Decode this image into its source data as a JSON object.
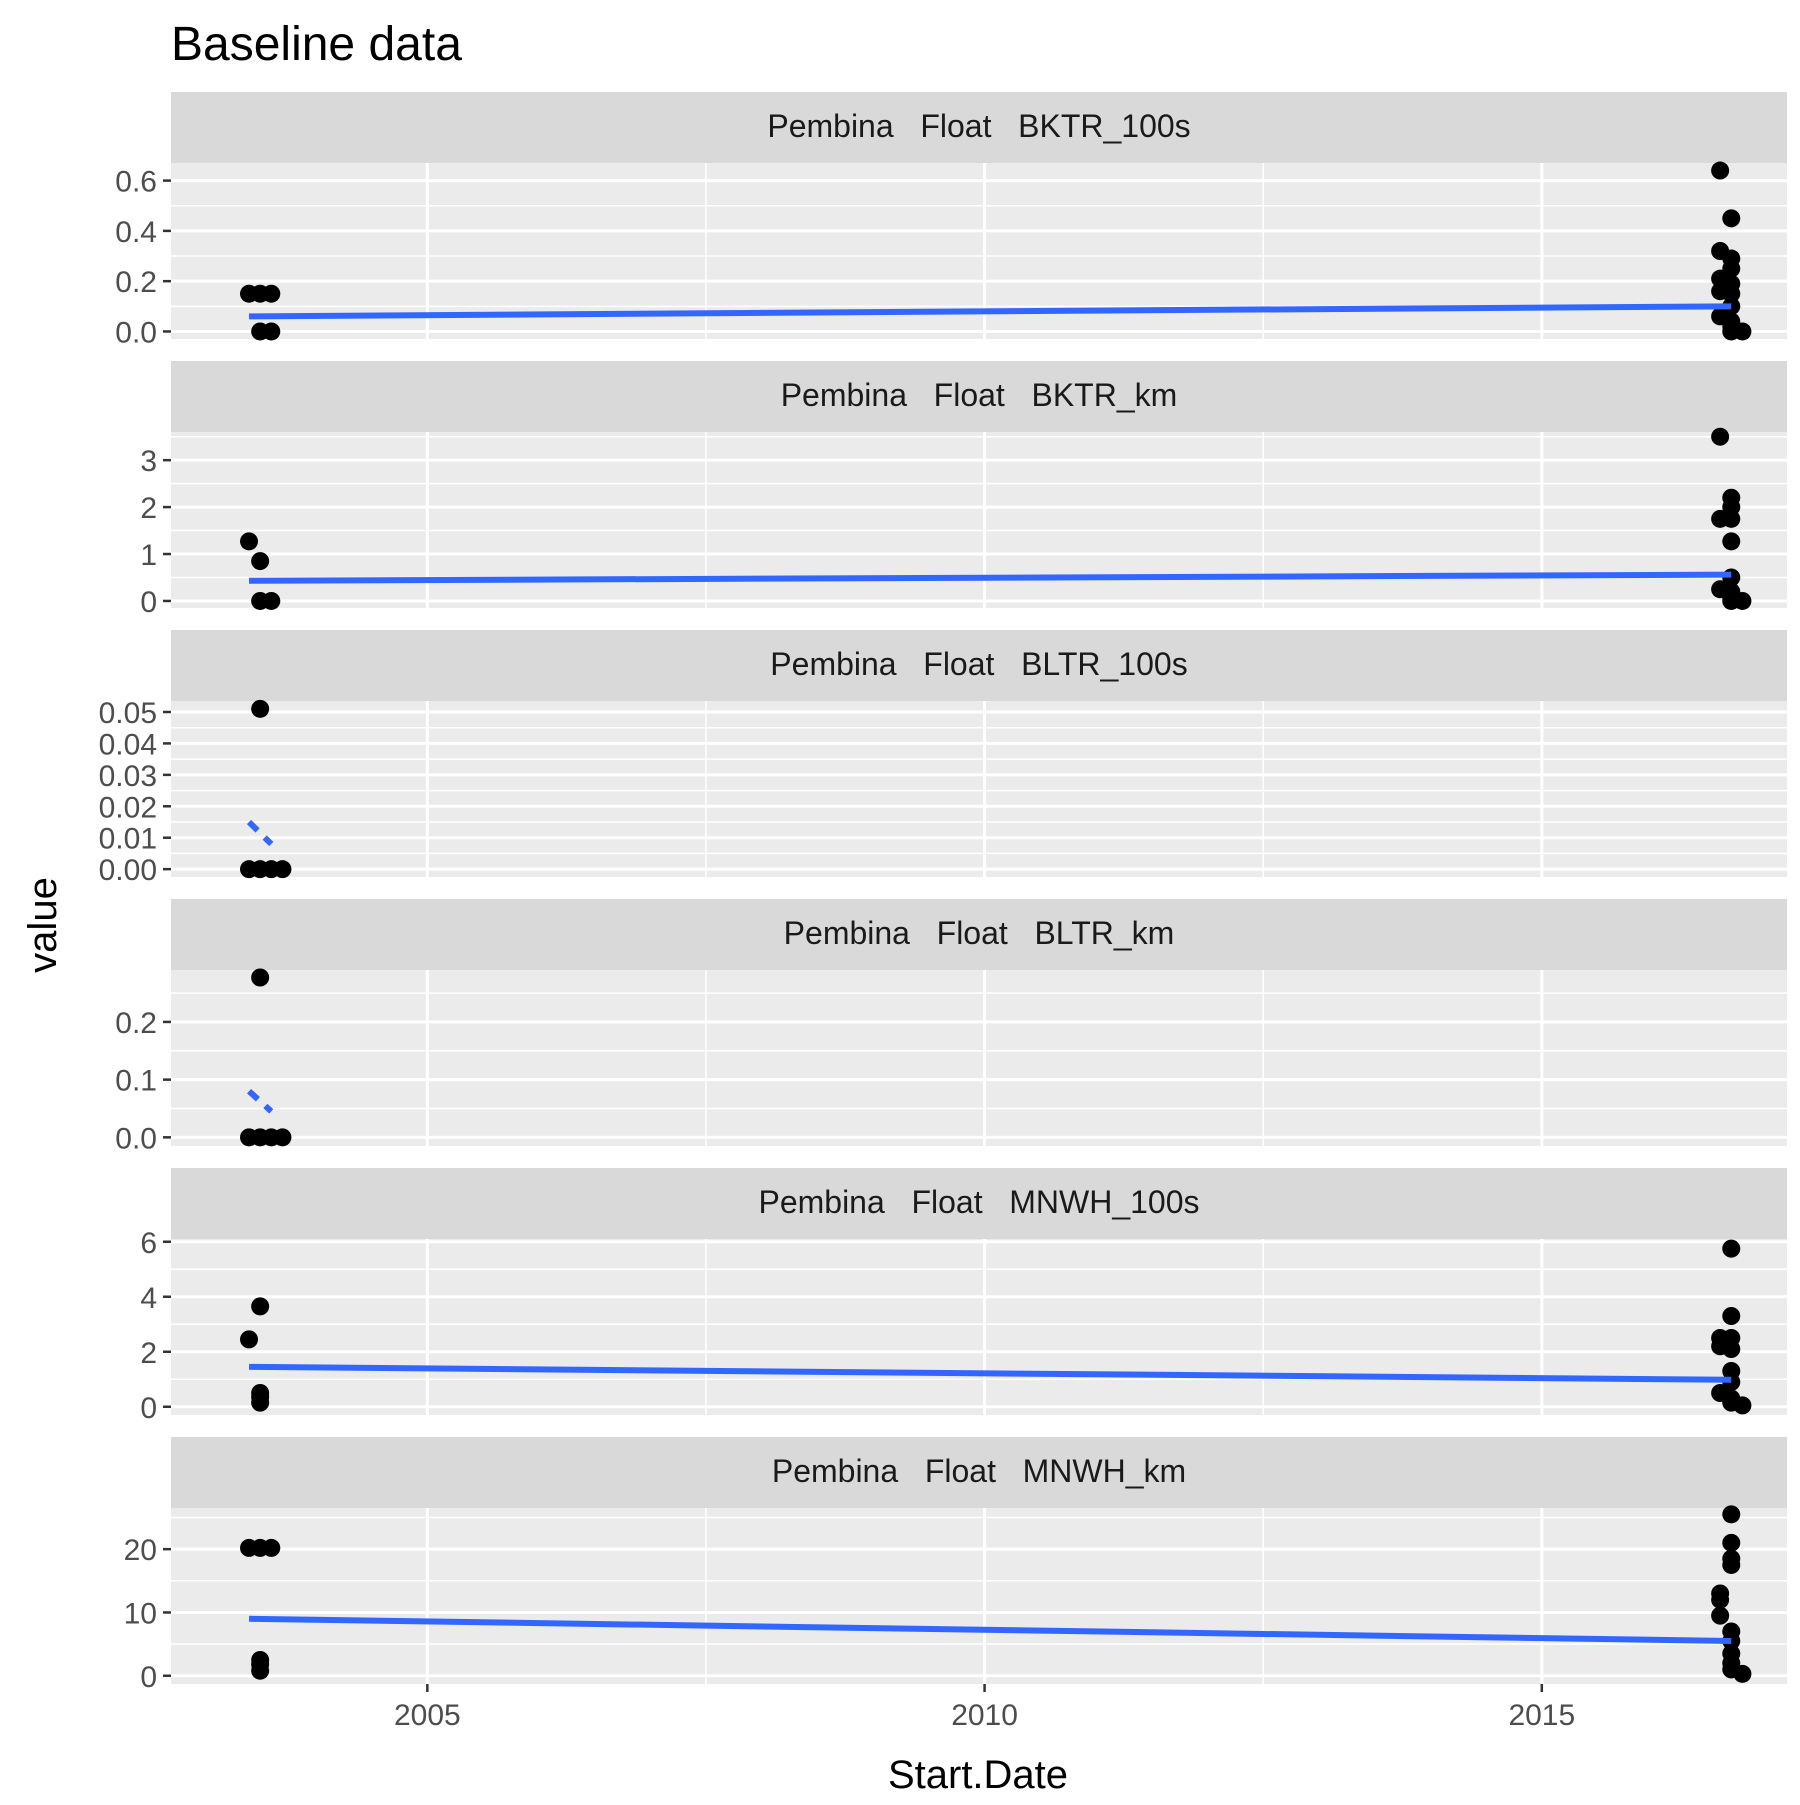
{
  "chart_data": {
    "type": "scatter",
    "title": "Baseline data",
    "xlabel": "Start.Date",
    "ylabel": "value",
    "x_axis": {
      "kind": "year",
      "range": [
        2002.7,
        2017.2
      ],
      "major_ticks": [
        2005,
        2010,
        2015
      ],
      "tick_labels": [
        "2005",
        "2010",
        "2015"
      ],
      "minor_ticks": [
        2002.5,
        2007.5,
        2012.5,
        2017.5
      ]
    },
    "grid": true,
    "background_color": "#EBEBEB",
    "strip_color": "#D9D9D9",
    "point_color": "#000000",
    "line_color": "#3366FF",
    "facets": [
      {
        "label": "Pembina   Float   BKTR_100s",
        "ylim": [
          -0.03,
          0.67
        ],
        "yticks": [
          0.0,
          0.2,
          0.4,
          0.6
        ],
        "ytick_labels": [
          "0.0",
          "0.2",
          "0.4",
          "0.6"
        ],
        "points": [
          [
            2003.4,
            0.15
          ],
          [
            2003.5,
            0.15
          ],
          [
            2003.6,
            0.15
          ],
          [
            2003.5,
            0.0
          ],
          [
            2003.6,
            0.0
          ],
          [
            2016.6,
            0.64
          ],
          [
            2016.7,
            0.45
          ],
          [
            2016.6,
            0.32
          ],
          [
            2016.7,
            0.29
          ],
          [
            2016.7,
            0.25
          ],
          [
            2016.6,
            0.21
          ],
          [
            2016.7,
            0.19
          ],
          [
            2016.6,
            0.16
          ],
          [
            2016.7,
            0.15
          ],
          [
            2016.7,
            0.1
          ],
          [
            2016.6,
            0.06
          ],
          [
            2016.7,
            0.04
          ],
          [
            2016.7,
            0.02
          ],
          [
            2016.7,
            0.0
          ],
          [
            2016.8,
            0.0
          ]
        ],
        "trend": {
          "style": "solid",
          "x": [
            2003.4,
            2016.7
          ],
          "y": [
            0.06,
            0.1
          ]
        }
      },
      {
        "label": "Pembina   Float   BKTR_km",
        "ylim": [
          -0.15,
          3.6
        ],
        "yticks": [
          0,
          1,
          2,
          3
        ],
        "ytick_labels": [
          "0",
          "1",
          "2",
          "3"
        ],
        "points": [
          [
            2003.4,
            1.27
          ],
          [
            2003.5,
            0.85
          ],
          [
            2003.5,
            0.0
          ],
          [
            2003.6,
            0.0
          ],
          [
            2016.6,
            3.5
          ],
          [
            2016.7,
            2.2
          ],
          [
            2016.7,
            2.0
          ],
          [
            2016.6,
            1.75
          ],
          [
            2016.7,
            1.75
          ],
          [
            2016.7,
            1.27
          ],
          [
            2016.7,
            0.5
          ],
          [
            2016.6,
            0.25
          ],
          [
            2016.7,
            0.2
          ],
          [
            2016.7,
            0.05
          ],
          [
            2016.7,
            0.0
          ],
          [
            2016.8,
            0.0
          ]
        ],
        "trend": {
          "style": "solid",
          "x": [
            2003.4,
            2016.7
          ],
          "y": [
            0.43,
            0.56
          ]
        }
      },
      {
        "label": "Pembina   Float   BLTR_100s",
        "ylim": [
          -0.0025,
          0.0535
        ],
        "yticks": [
          0.0,
          0.01,
          0.02,
          0.03,
          0.04,
          0.05
        ],
        "ytick_labels": [
          "0.00",
          "0.01",
          "0.02",
          "0.03",
          "0.04",
          "0.05"
        ],
        "points": [
          [
            2003.5,
            0.051
          ],
          [
            2003.4,
            0.0
          ],
          [
            2003.5,
            0.0
          ],
          [
            2003.6,
            0.0
          ],
          [
            2003.7,
            0.0
          ]
        ],
        "trend": {
          "style": "dashed",
          "x": [
            2003.4,
            2003.6
          ],
          "y": [
            0.015,
            0.008
          ]
        }
      },
      {
        "label": "Pembina   Float   BLTR_km",
        "ylim": [
          -0.015,
          0.29
        ],
        "yticks": [
          0.0,
          0.1,
          0.2
        ],
        "ytick_labels": [
          "0.0",
          "0.1",
          "0.2"
        ],
        "points": [
          [
            2003.5,
            0.277
          ],
          [
            2003.4,
            0.0
          ],
          [
            2003.5,
            0.0
          ],
          [
            2003.6,
            0.0
          ],
          [
            2003.7,
            0.0
          ]
        ],
        "trend": {
          "style": "dashed",
          "x": [
            2003.4,
            2003.6
          ],
          "y": [
            0.08,
            0.045
          ]
        }
      },
      {
        "label": "Pembina   Float   MNWH_100s",
        "ylim": [
          -0.3,
          6.1
        ],
        "yticks": [
          0,
          2,
          4,
          6
        ],
        "ytick_labels": [
          "0",
          "2",
          "4",
          "6"
        ],
        "points": [
          [
            2003.5,
            3.65
          ],
          [
            2003.4,
            2.45
          ],
          [
            2003.5,
            0.5
          ],
          [
            2003.5,
            0.35
          ],
          [
            2003.5,
            0.15
          ],
          [
            2016.7,
            5.75
          ],
          [
            2016.7,
            3.3
          ],
          [
            2016.6,
            2.5
          ],
          [
            2016.7,
            2.5
          ],
          [
            2016.6,
            2.2
          ],
          [
            2016.7,
            2.1
          ],
          [
            2016.7,
            1.3
          ],
          [
            2016.7,
            0.9
          ],
          [
            2016.6,
            0.5
          ],
          [
            2016.7,
            0.3
          ],
          [
            2016.7,
            0.15
          ],
          [
            2016.8,
            0.05
          ]
        ],
        "trend": {
          "style": "solid",
          "x": [
            2003.4,
            2016.7
          ],
          "y": [
            1.45,
            0.98
          ]
        }
      },
      {
        "label": "Pembina   Float   MNWH_km",
        "ylim": [
          -1.3,
          26.5
        ],
        "yticks": [
          0,
          10,
          20
        ],
        "ytick_labels": [
          "0",
          "10",
          "20"
        ],
        "points": [
          [
            2003.4,
            20.2
          ],
          [
            2003.5,
            20.2
          ],
          [
            2003.6,
            20.2
          ],
          [
            2003.5,
            2.5
          ],
          [
            2003.5,
            1.8
          ],
          [
            2003.5,
            0.8
          ],
          [
            2016.7,
            25.5
          ],
          [
            2016.7,
            21.0
          ],
          [
            2016.7,
            18.5
          ],
          [
            2016.7,
            17.5
          ],
          [
            2016.6,
            13.0
          ],
          [
            2016.6,
            12.0
          ],
          [
            2016.6,
            9.5
          ],
          [
            2016.7,
            7.0
          ],
          [
            2016.7,
            5.5
          ],
          [
            2016.7,
            3.5
          ],
          [
            2016.7,
            2.0
          ],
          [
            2016.7,
            1.0
          ],
          [
            2016.8,
            0.3
          ]
        ],
        "trend": {
          "style": "solid",
          "x": [
            2003.4,
            2016.7
          ],
          "y": [
            9.0,
            5.5
          ]
        }
      }
    ]
  }
}
